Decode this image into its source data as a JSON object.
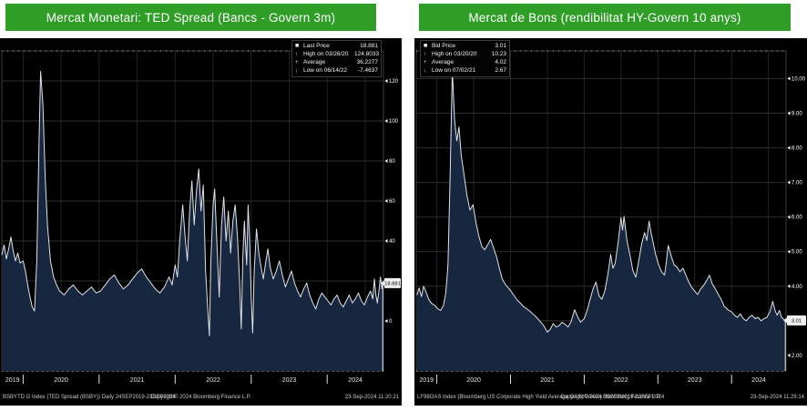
{
  "colors": {
    "header_green": "#2f9e27",
    "chart_bg": "#000000",
    "area_fill": "#16273f",
    "line": "#dfe3e8",
    "grid_h": "#2e2e2e",
    "grid_v": "#222222",
    "plot_border": "#3d3d3d",
    "axis_text": "#ffffff",
    "marker_bg": "#f0f0f0",
    "marker_text": "#000000"
  },
  "panels": [
    {
      "title": "Mercat Monetari: TED Spread  (Bancs - Govern 3m)",
      "footer": {
        "instrument": "BSBYTD G Index (TED Spread (BSBY)) Daily 24SEP2019-23SEP2024",
        "copyright": "Copyright© 2024 Bloomberg Finance L.P.",
        "timestamp": "23-Sep-2024 11:20:21"
      }
    },
    {
      "title": "Mercat de Bons (rendibilitat HY-Govern 10 anys)",
      "footer": {
        "instrument": "LF98OAS Index (Bloomberg US Corporate High Yield Average OAS) Weekly 29SEP2019-22SEP2024",
        "copyright": "Copyright© 2024 Bloomberg Finance L.P.",
        "timestamp": "23-Sep-2024 11:29:14"
      }
    }
  ],
  "chart_data": [
    {
      "type": "area",
      "title": "TED Spread (Bancs - Govern 3m)",
      "legend": [
        {
          "icon": "square",
          "label": "Last Price",
          "value": "18.881"
        },
        {
          "icon": "high-arrow",
          "label": "High on 03/26/20",
          "value": "124.8033"
        },
        {
          "icon": "average-mark",
          "label": "Average",
          "value": "36.2277"
        },
        {
          "icon": "low-arrow",
          "label": "Low on 06/14/22",
          "value": "-7.4637"
        }
      ],
      "legend_position": "top-right",
      "marker_label": "18.881",
      "last_value": 18.9,
      "xlim": [
        2019.72,
        2024.74
      ],
      "ylim": [
        -25,
        135
      ],
      "yticks": [
        0,
        20,
        40,
        60,
        80,
        100,
        120
      ],
      "ydecimals": 0,
      "x_years": [
        2019,
        2020,
        2021,
        2022,
        2023,
        2024
      ],
      "grid": true,
      "points": [
        [
          2019.72,
          33
        ],
        [
          2019.75,
          38
        ],
        [
          2019.78,
          31
        ],
        [
          2019.81,
          36
        ],
        [
          2019.84,
          42
        ],
        [
          2019.87,
          35
        ],
        [
          2019.9,
          30
        ],
        [
          2019.93,
          34
        ],
        [
          2019.96,
          29
        ],
        [
          2020.0,
          30
        ],
        [
          2020.03,
          25
        ],
        [
          2020.06,
          18
        ],
        [
          2020.09,
          12
        ],
        [
          2020.12,
          7
        ],
        [
          2020.15,
          5
        ],
        [
          2020.18,
          30
        ],
        [
          2020.21,
          90
        ],
        [
          2020.23,
          124.8
        ],
        [
          2020.26,
          108
        ],
        [
          2020.29,
          72
        ],
        [
          2020.32,
          48
        ],
        [
          2020.36,
          30
        ],
        [
          2020.4,
          22
        ],
        [
          2020.44,
          18
        ],
        [
          2020.48,
          15
        ],
        [
          2020.54,
          13
        ],
        [
          2020.6,
          16
        ],
        [
          2020.66,
          18
        ],
        [
          2020.72,
          15
        ],
        [
          2020.78,
          13
        ],
        [
          2020.84,
          15
        ],
        [
          2020.9,
          17
        ],
        [
          2020.96,
          14
        ],
        [
          2021.02,
          15
        ],
        [
          2021.08,
          18
        ],
        [
          2021.14,
          21
        ],
        [
          2021.2,
          23
        ],
        [
          2021.26,
          19
        ],
        [
          2021.32,
          16
        ],
        [
          2021.38,
          18
        ],
        [
          2021.44,
          21
        ],
        [
          2021.5,
          24
        ],
        [
          2021.56,
          26
        ],
        [
          2021.62,
          22
        ],
        [
          2021.68,
          19
        ],
        [
          2021.74,
          16
        ],
        [
          2021.8,
          14
        ],
        [
          2021.86,
          17
        ],
        [
          2021.92,
          22
        ],
        [
          2021.96,
          18
        ],
        [
          2022.0,
          28
        ],
        [
          2022.03,
          22
        ],
        [
          2022.06,
          40
        ],
        [
          2022.1,
          58
        ],
        [
          2022.13,
          42
        ],
        [
          2022.16,
          30
        ],
        [
          2022.19,
          55
        ],
        [
          2022.22,
          70
        ],
        [
          2022.25,
          48
        ],
        [
          2022.28,
          65
        ],
        [
          2022.31,
          76
        ],
        [
          2022.34,
          55
        ],
        [
          2022.37,
          68
        ],
        [
          2022.4,
          25
        ],
        [
          2022.43,
          5
        ],
        [
          2022.45,
          -7.4
        ],
        [
          2022.47,
          30
        ],
        [
          2022.5,
          58
        ],
        [
          2022.52,
          66
        ],
        [
          2022.55,
          38
        ],
        [
          2022.58,
          12
        ],
        [
          2022.61,
          48
        ],
        [
          2022.64,
          62
        ],
        [
          2022.67,
          40
        ],
        [
          2022.7,
          55
        ],
        [
          2022.73,
          34
        ],
        [
          2022.76,
          50
        ],
        [
          2022.79,
          58
        ],
        [
          2022.82,
          42
        ],
        [
          2022.85,
          18
        ],
        [
          2022.87,
          -4
        ],
        [
          2022.89,
          32
        ],
        [
          2022.91,
          50
        ],
        [
          2022.94,
          28
        ],
        [
          2022.96,
          58
        ],
        [
          2022.98,
          40
        ],
        [
          2023.0,
          12
        ],
        [
          2023.02,
          -6
        ],
        [
          2023.04,
          25
        ],
        [
          2023.07,
          46
        ],
        [
          2023.1,
          34
        ],
        [
          2023.13,
          27
        ],
        [
          2023.16,
          21
        ],
        [
          2023.19,
          29
        ],
        [
          2023.22,
          36
        ],
        [
          2023.25,
          27
        ],
        [
          2023.29,
          21
        ],
        [
          2023.33,
          25
        ],
        [
          2023.37,
          30
        ],
        [
          2023.41,
          23
        ],
        [
          2023.45,
          17
        ],
        [
          2023.49,
          21
        ],
        [
          2023.53,
          25
        ],
        [
          2023.57,
          19
        ],
        [
          2023.61,
          15
        ],
        [
          2023.65,
          12
        ],
        [
          2023.69,
          16
        ],
        [
          2023.73,
          19
        ],
        [
          2023.77,
          13
        ],
        [
          2023.81,
          9
        ],
        [
          2023.85,
          6
        ],
        [
          2023.89,
          11
        ],
        [
          2023.93,
          14
        ],
        [
          2023.97,
          12
        ],
        [
          2024.01,
          10
        ],
        [
          2024.05,
          8
        ],
        [
          2024.09,
          11
        ],
        [
          2024.13,
          13
        ],
        [
          2024.17,
          9
        ],
        [
          2024.21,
          7
        ],
        [
          2024.25,
          10
        ],
        [
          2024.29,
          13
        ],
        [
          2024.33,
          9
        ],
        [
          2024.37,
          11
        ],
        [
          2024.41,
          14
        ],
        [
          2024.45,
          10
        ],
        [
          2024.49,
          8
        ],
        [
          2024.53,
          12
        ],
        [
          2024.57,
          15
        ],
        [
          2024.6,
          11
        ],
        [
          2024.62,
          21
        ],
        [
          2024.64,
          13
        ],
        [
          2024.66,
          9
        ],
        [
          2024.68,
          15
        ],
        [
          2024.7,
          22
        ],
        [
          2024.72,
          16
        ],
        [
          2024.73,
          18.9
        ]
      ]
    },
    {
      "type": "area",
      "title": "Bloomberg US Corporate High Yield Average OAS",
      "legend": [
        {
          "icon": "square",
          "label": "Bid Price",
          "value": "3.01"
        },
        {
          "icon": "high-arrow",
          "label": "High on 03/20/20",
          "value": "10.23"
        },
        {
          "icon": "average-mark",
          "label": "Average",
          "value": "4.02"
        },
        {
          "icon": "low-arrow",
          "label": "Low on 07/02/21",
          "value": "2.67"
        }
      ],
      "legend_position": "top-left",
      "marker_label": "3.01",
      "last_value": 3.01,
      "xlim": [
        2019.72,
        2024.74
      ],
      "ylim": [
        1.55,
        10.8
      ],
      "yticks": [
        2,
        3,
        4,
        5,
        6,
        7,
        8,
        9,
        10
      ],
      "ydecimals": 2,
      "x_years": [
        2019,
        2020,
        2021,
        2022,
        2023,
        2024
      ],
      "grid": true,
      "points": [
        [
          2019.73,
          3.75
        ],
        [
          2019.76,
          3.95
        ],
        [
          2019.79,
          3.7
        ],
        [
          2019.82,
          4.0
        ],
        [
          2019.85,
          3.85
        ],
        [
          2019.89,
          3.62
        ],
        [
          2019.93,
          3.5
        ],
        [
          2019.97,
          3.45
        ],
        [
          2020.01,
          3.35
        ],
        [
          2020.05,
          3.3
        ],
        [
          2020.09,
          3.45
        ],
        [
          2020.12,
          3.8
        ],
        [
          2020.15,
          4.6
        ],
        [
          2020.18,
          7.2
        ],
        [
          2020.21,
          10.23
        ],
        [
          2020.24,
          8.8
        ],
        [
          2020.27,
          8.2
        ],
        [
          2020.3,
          8.6
        ],
        [
          2020.33,
          7.8
        ],
        [
          2020.37,
          7.2
        ],
        [
          2020.41,
          6.6
        ],
        [
          2020.45,
          6.2
        ],
        [
          2020.49,
          6.35
        ],
        [
          2020.53,
          5.85
        ],
        [
          2020.57,
          5.45
        ],
        [
          2020.61,
          5.15
        ],
        [
          2020.65,
          5.05
        ],
        [
          2020.69,
          5.2
        ],
        [
          2020.73,
          5.35
        ],
        [
          2020.77,
          5.1
        ],
        [
          2020.81,
          4.85
        ],
        [
          2020.85,
          4.5
        ],
        [
          2020.89,
          4.2
        ],
        [
          2020.93,
          4.05
        ],
        [
          2020.97,
          3.95
        ],
        [
          2021.01,
          3.85
        ],
        [
          2021.05,
          3.72
        ],
        [
          2021.09,
          3.6
        ],
        [
          2021.13,
          3.52
        ],
        [
          2021.17,
          3.42
        ],
        [
          2021.21,
          3.36
        ],
        [
          2021.25,
          3.3
        ],
        [
          2021.29,
          3.22
        ],
        [
          2021.33,
          3.15
        ],
        [
          2021.37,
          3.06
        ],
        [
          2021.41,
          2.96
        ],
        [
          2021.45,
          2.86
        ],
        [
          2021.5,
          2.67
        ],
        [
          2021.54,
          2.76
        ],
        [
          2021.58,
          2.92
        ],
        [
          2021.62,
          2.82
        ],
        [
          2021.66,
          2.86
        ],
        [
          2021.7,
          2.96
        ],
        [
          2021.74,
          2.9
        ],
        [
          2021.78,
          2.82
        ],
        [
          2021.82,
          2.96
        ],
        [
          2021.87,
          3.32
        ],
        [
          2021.91,
          3.12
        ],
        [
          2021.95,
          2.96
        ],
        [
          2022.0,
          3.06
        ],
        [
          2022.04,
          3.3
        ],
        [
          2022.08,
          3.62
        ],
        [
          2022.12,
          3.92
        ],
        [
          2022.16,
          4.12
        ],
        [
          2022.2,
          3.72
        ],
        [
          2022.24,
          3.62
        ],
        [
          2022.28,
          3.86
        ],
        [
          2022.32,
          4.32
        ],
        [
          2022.36,
          4.92
        ],
        [
          2022.39,
          4.52
        ],
        [
          2022.42,
          4.66
        ],
        [
          2022.46,
          5.25
        ],
        [
          2022.5,
          5.98
        ],
        [
          2022.52,
          5.62
        ],
        [
          2022.54,
          6.02
        ],
        [
          2022.58,
          5.32
        ],
        [
          2022.62,
          4.92
        ],
        [
          2022.66,
          4.46
        ],
        [
          2022.7,
          4.26
        ],
        [
          2022.74,
          4.72
        ],
        [
          2022.78,
          5.22
        ],
        [
          2022.82,
          5.55
        ],
        [
          2022.85,
          5.32
        ],
        [
          2022.88,
          5.88
        ],
        [
          2022.91,
          5.52
        ],
        [
          2022.94,
          5.22
        ],
        [
          2022.97,
          4.92
        ],
        [
          2023.01,
          4.62
        ],
        [
          2023.05,
          4.42
        ],
        [
          2023.09,
          4.32
        ],
        [
          2023.11,
          4.62
        ],
        [
          2023.14,
          5.18
        ],
        [
          2023.18,
          4.88
        ],
        [
          2023.22,
          4.62
        ],
        [
          2023.26,
          4.55
        ],
        [
          2023.3,
          4.42
        ],
        [
          2023.34,
          4.52
        ],
        [
          2023.38,
          4.32
        ],
        [
          2023.42,
          4.12
        ],
        [
          2023.46,
          3.96
        ],
        [
          2023.5,
          3.86
        ],
        [
          2023.54,
          3.76
        ],
        [
          2023.58,
          3.92
        ],
        [
          2023.62,
          4.02
        ],
        [
          2023.66,
          4.16
        ],
        [
          2023.7,
          4.32
        ],
        [
          2023.74,
          4.06
        ],
        [
          2023.78,
          3.92
        ],
        [
          2023.82,
          3.76
        ],
        [
          2023.86,
          3.62
        ],
        [
          2023.9,
          3.42
        ],
        [
          2023.95,
          3.32
        ],
        [
          2024.0,
          3.26
        ],
        [
          2024.04,
          3.16
        ],
        [
          2024.08,
          3.1
        ],
        [
          2024.12,
          3.2
        ],
        [
          2024.16,
          3.06
        ],
        [
          2024.2,
          3.0
        ],
        [
          2024.24,
          3.1
        ],
        [
          2024.28,
          3.16
        ],
        [
          2024.32,
          3.06
        ],
        [
          2024.36,
          3.1
        ],
        [
          2024.4,
          3.0
        ],
        [
          2024.44,
          3.06
        ],
        [
          2024.48,
          3.1
        ],
        [
          2024.52,
          3.26
        ],
        [
          2024.56,
          3.56
        ],
        [
          2024.59,
          3.3
        ],
        [
          2024.62,
          3.16
        ],
        [
          2024.65,
          3.3
        ],
        [
          2024.68,
          3.1
        ],
        [
          2024.71,
          3.04
        ],
        [
          2024.73,
          3.01
        ]
      ]
    }
  ]
}
